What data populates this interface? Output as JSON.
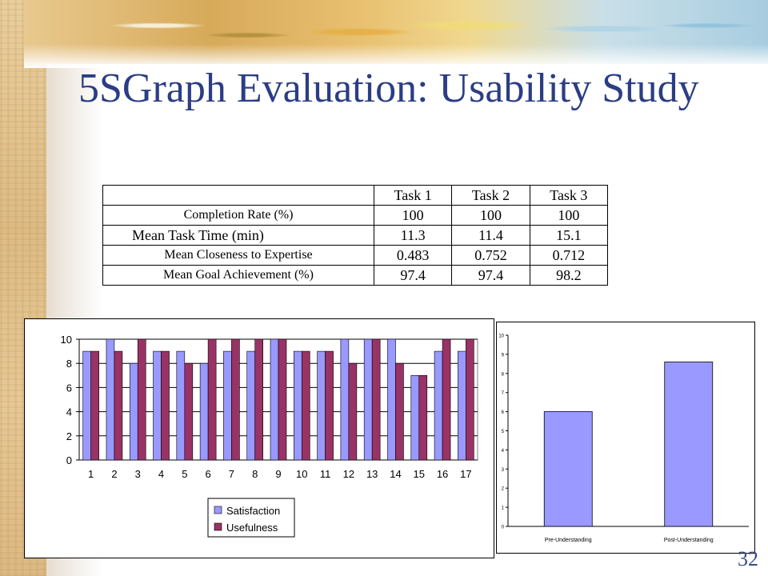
{
  "slide": {
    "title": "5SGraph Evaluation: Usability Study",
    "page_number": "32"
  },
  "table": {
    "columns": [
      "",
      "Task 1",
      "Task 2",
      "Task 3"
    ],
    "rows": [
      {
        "label": "Completion Rate (%)",
        "values": [
          "100",
          "100",
          "100"
        ]
      },
      {
        "label": "Mean Task Time (min)",
        "values": [
          "11.3",
          "11.4",
          "15.1"
        ]
      },
      {
        "label": "Mean Closeness to Expertise",
        "values": [
          "0.483",
          "0.752",
          "0.712"
        ]
      },
      {
        "label": "Mean Goal Achievement (%)",
        "values": [
          "97.4",
          "97.4",
          "98.2"
        ]
      }
    ]
  },
  "colors": {
    "satisfaction": "#9999ff",
    "usefulness": "#993366",
    "title": "#2b3d84"
  },
  "chart_data": [
    {
      "type": "bar",
      "categories": [
        "1",
        "2",
        "3",
        "4",
        "5",
        "6",
        "7",
        "8",
        "9",
        "10",
        "11",
        "12",
        "13",
        "14",
        "15",
        "16",
        "17"
      ],
      "series": [
        {
          "name": "Satisfaction",
          "values": [
            9,
            10,
            8,
            9,
            9,
            8,
            9,
            9,
            10,
            9,
            9,
            10,
            10,
            10,
            7,
            9,
            9
          ]
        },
        {
          "name": "Usefulness",
          "values": [
            9,
            9,
            10,
            9,
            8,
            10,
            10,
            10,
            10,
            9,
            9,
            8,
            10,
            8,
            7,
            10,
            10
          ]
        }
      ],
      "yticks": [
        "0",
        "2",
        "4",
        "6",
        "8",
        "10"
      ],
      "ylim": [
        0,
        10
      ],
      "grid": true,
      "legend": "bottom-right"
    },
    {
      "type": "bar",
      "categories": [
        "Pre-Understanding",
        "Post-Understanding"
      ],
      "values": [
        6.0,
        8.6
      ],
      "yticks": [
        "0",
        "1",
        "2",
        "3",
        "4",
        "5",
        "6",
        "7",
        "8",
        "9",
        "10"
      ],
      "ylim": [
        0,
        10
      ],
      "grid": false
    }
  ]
}
